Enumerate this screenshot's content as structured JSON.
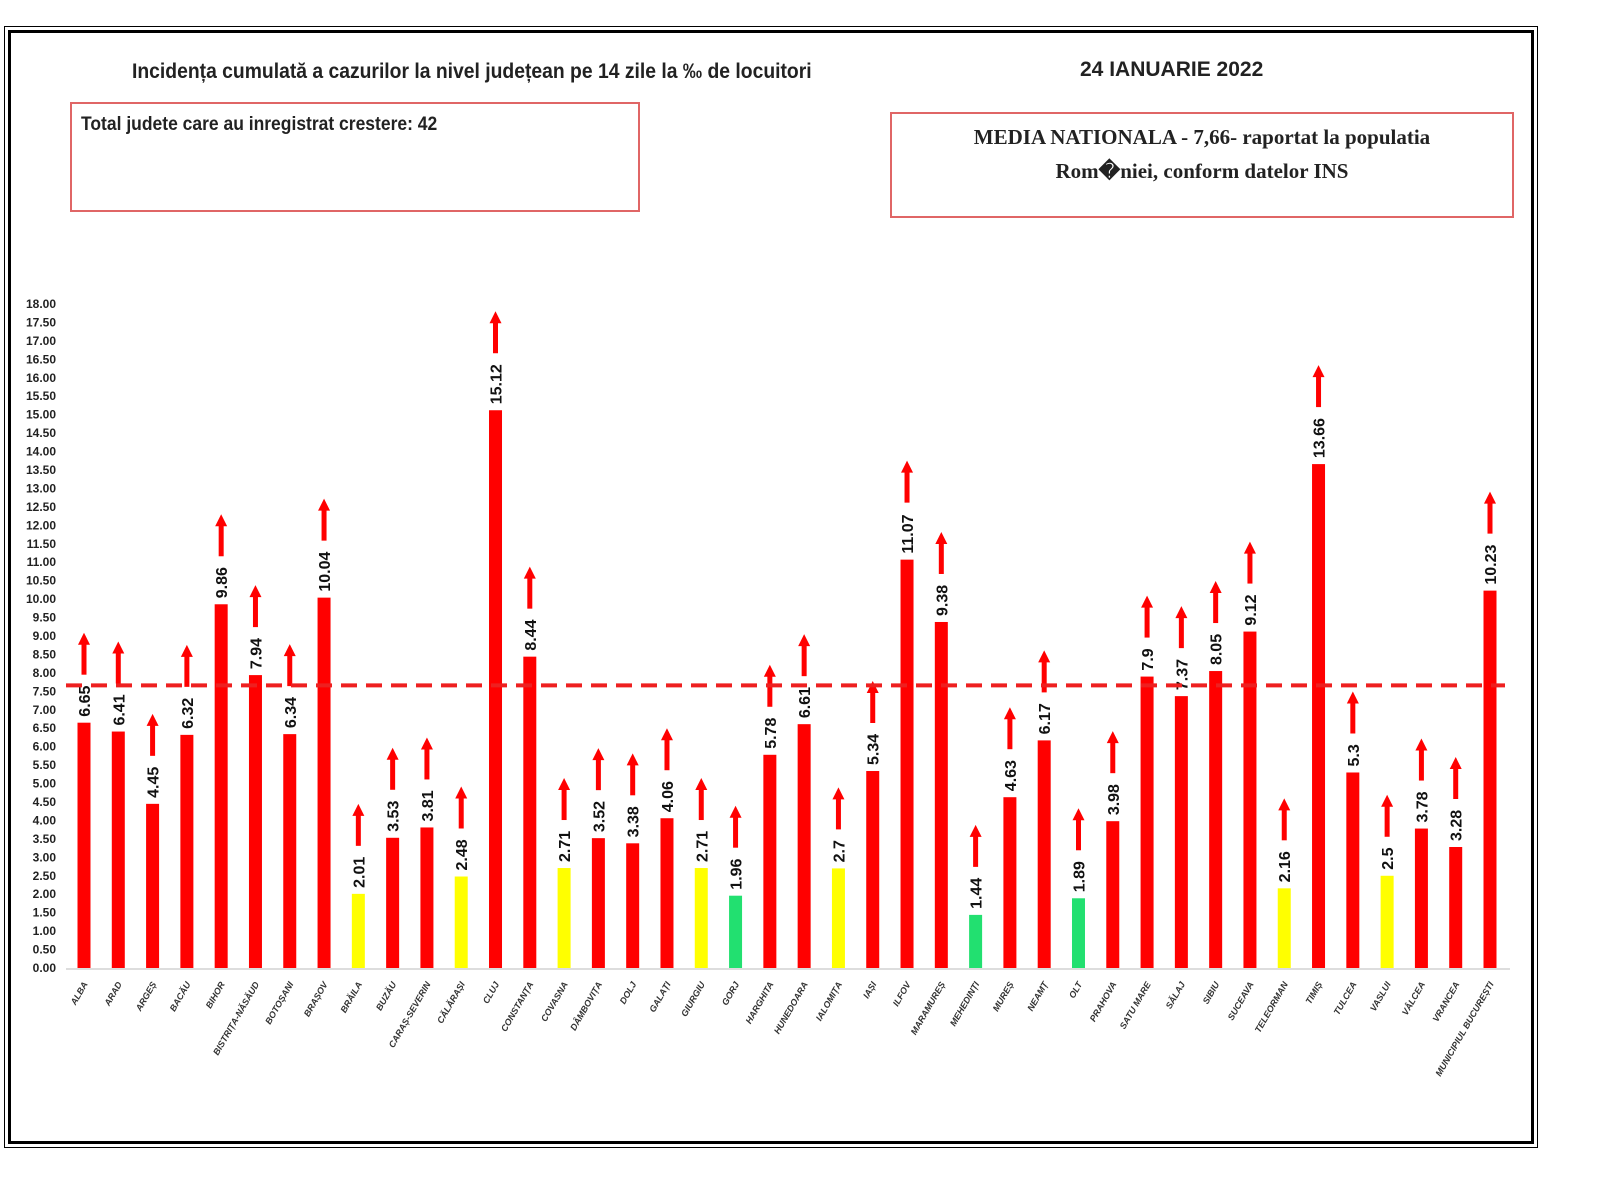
{
  "header": {
    "title": "Incidența cumulată a cazurilor la nivel județean pe 14 zile la ‰ de locuitori",
    "date": "24 IANUARIE 2022",
    "total_box": "Total judete care au inregistrat crestere: 42",
    "media_line1": "MEDIA NATIONALA - 7,66-  raportat la populatia",
    "media_line2": "Rom�niei, conform datelor INS"
  },
  "colors": {
    "red": "#ff0000",
    "yellow": "#ffff00",
    "green": "#22e070",
    "line": "#ee2020"
  },
  "chart_data": {
    "type": "bar",
    "title": "Incidența cumulată a cazurilor la nivel județean pe 14 zile la ‰ de locuitori",
    "ylim": [
      0,
      18
    ],
    "ytick_step": 0.5,
    "reference_line": 7.66,
    "categories": [
      "ALBA",
      "ARAD",
      "ARGEȘ",
      "BACĂU",
      "BIHOR",
      "BISTRIȚA-NĂSĂUD",
      "BOTOȘANI",
      "BRAȘOV",
      "BRĂILA",
      "BUZĂU",
      "CARAȘ-SEVERIN",
      "CĂLĂRAȘI",
      "CLUJ",
      "CONSTANȚA",
      "COVASNA",
      "DÂMBOVIȚA",
      "DOLJ",
      "GALAȚI",
      "GIURGIU",
      "GORJ",
      "HARGHITA",
      "HUNEDOARA",
      "IALOMIȚA",
      "IAȘI",
      "ILFOV",
      "MARAMUREȘ",
      "MEHEDINȚI",
      "MUREȘ",
      "NEAMȚ",
      "OLT",
      "PRAHOVA",
      "SATU MARE",
      "SĂLAJ",
      "SIBIU",
      "SUCEAVA",
      "TELEORMAN",
      "TIMIȘ",
      "TULCEA",
      "VASLUI",
      "VÂLCEA",
      "VRANCEA",
      "MUNICIPIUL BUCUREȘTI"
    ],
    "values": [
      6.65,
      6.41,
      4.45,
      6.32,
      9.86,
      7.94,
      6.34,
      10.04,
      2.01,
      3.53,
      3.81,
      2.48,
      15.12,
      8.44,
      2.71,
      3.52,
      3.38,
      4.06,
      2.71,
      1.96,
      5.78,
      6.61,
      2.7,
      5.34,
      11.07,
      9.38,
      1.44,
      4.63,
      6.17,
      1.89,
      3.98,
      7.9,
      7.37,
      8.05,
      9.12,
      2.16,
      13.66,
      5.3,
      2.5,
      3.78,
      3.28,
      10.23
    ],
    "value_labels": [
      "6.65",
      "6.41",
      "4.45",
      "6.32",
      "9.86",
      "7.94",
      "6.34",
      "10.04",
      "2.01",
      "3.53",
      "3.81",
      "2.48",
      "15.12",
      "8.44",
      "2.71",
      "3.52",
      "3.38",
      "4.06",
      "2.71",
      "1.96",
      "5.78",
      "6.61",
      "2.7",
      "5.34",
      "11.07",
      "9.38",
      "1.44",
      "4.63",
      "6.17",
      "1.89",
      "3.98",
      "7.9",
      "7.37",
      "8.05",
      "9.12",
      "2.16",
      "13.66",
      "5.3",
      "2.5",
      "3.78",
      "3.28",
      "10.23"
    ],
    "bar_colors": [
      "red",
      "red",
      "red",
      "red",
      "red",
      "red",
      "red",
      "red",
      "yellow",
      "red",
      "red",
      "yellow",
      "red",
      "red",
      "yellow",
      "red",
      "red",
      "red",
      "yellow",
      "green",
      "red",
      "red",
      "yellow",
      "red",
      "red",
      "red",
      "green",
      "red",
      "red",
      "green",
      "red",
      "red",
      "red",
      "red",
      "red",
      "yellow",
      "red",
      "red",
      "yellow",
      "red",
      "red",
      "red"
    ],
    "trend": "up"
  }
}
